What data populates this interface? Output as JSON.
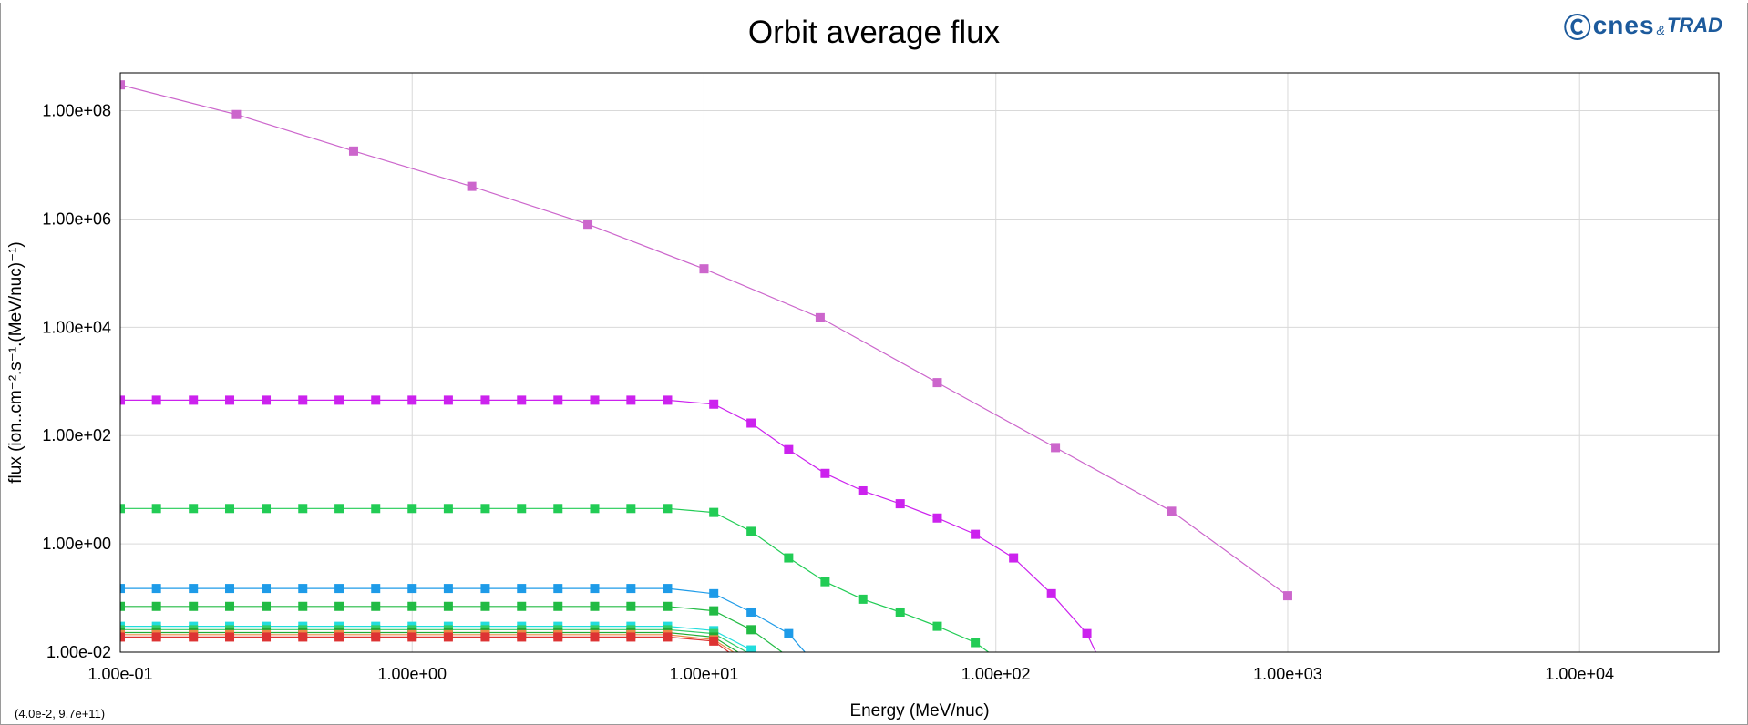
{
  "window": {
    "title": "Orbit average flux"
  },
  "logo": {
    "text": "cnes",
    "amp": "&",
    "suffix": "TRAD"
  },
  "status": {
    "coords": "(4.0e-2, 9.7e+11)"
  },
  "chart_data": {
    "type": "line",
    "title": "Orbit average flux",
    "xlabel": "Energy (MeV/nuc)",
    "ylabel": "flux (ion..cm⁻².s⁻¹.(MeV/nuc)⁻¹)",
    "xscale": "log",
    "yscale": "log",
    "xlim": [
      0.1,
      30000
    ],
    "ylim": [
      0.01,
      500000000
    ],
    "xticks": [
      "1.00e-01",
      "1.00e+00",
      "1.00e+01",
      "1.00e+02",
      "1.00e+03",
      "1.00e+04"
    ],
    "yticks": [
      "1.00e-02",
      "1.00e+00",
      "1.00e+02",
      "1.00e+04",
      "1.00e+06",
      "1.00e+08"
    ],
    "grid": true,
    "series": [
      {
        "color": "#cc66cc",
        "marker": "square",
        "points": [
          [
            0.1,
            300000000
          ],
          [
            0.25,
            85000000
          ],
          [
            0.63,
            18000000
          ],
          [
            1.6,
            4000000
          ],
          [
            4.0,
            800000
          ],
          [
            10,
            120000
          ],
          [
            25,
            15000
          ],
          [
            63,
            950
          ],
          [
            160,
            60
          ],
          [
            400,
            4
          ],
          [
            1000,
            0.11
          ]
        ]
      },
      {
        "color": "#cc22ee",
        "marker": "square",
        "points": [
          [
            0.1,
            450
          ],
          [
            0.133,
            450
          ],
          [
            0.178,
            450
          ],
          [
            0.237,
            450
          ],
          [
            0.316,
            450
          ],
          [
            0.422,
            450
          ],
          [
            0.562,
            450
          ],
          [
            0.75,
            450
          ],
          [
            1.0,
            450
          ],
          [
            1.33,
            450
          ],
          [
            1.78,
            450
          ],
          [
            2.37,
            450
          ],
          [
            3.16,
            450
          ],
          [
            4.22,
            450
          ],
          [
            5.62,
            450
          ],
          [
            7.5,
            450
          ],
          [
            10.8,
            380
          ],
          [
            14.5,
            170
          ],
          [
            19.5,
            55
          ],
          [
            26,
            20
          ],
          [
            35,
            9.5
          ],
          [
            47,
            5.5
          ],
          [
            63,
            3
          ],
          [
            85,
            1.5
          ],
          [
            115,
            0.55
          ],
          [
            155,
            0.12
          ],
          [
            205,
            0.022
          ],
          [
            230,
            0.006
          ]
        ]
      },
      {
        "color": "#22cc55",
        "marker": "square",
        "points": [
          [
            0.1,
            4.5
          ],
          [
            0.133,
            4.5
          ],
          [
            0.178,
            4.5
          ],
          [
            0.237,
            4.5
          ],
          [
            0.316,
            4.5
          ],
          [
            0.422,
            4.5
          ],
          [
            0.562,
            4.5
          ],
          [
            0.75,
            4.5
          ],
          [
            1.0,
            4.5
          ],
          [
            1.33,
            4.5
          ],
          [
            1.78,
            4.5
          ],
          [
            2.37,
            4.5
          ],
          [
            3.16,
            4.5
          ],
          [
            4.22,
            4.5
          ],
          [
            5.62,
            4.5
          ],
          [
            7.5,
            4.5
          ],
          [
            10.8,
            3.8
          ],
          [
            14.5,
            1.7
          ],
          [
            19.5,
            0.55
          ],
          [
            26,
            0.2
          ],
          [
            35,
            0.095
          ],
          [
            47,
            0.055
          ],
          [
            63,
            0.03
          ],
          [
            85,
            0.015
          ],
          [
            100,
            0.008
          ]
        ]
      },
      {
        "color": "#1e9be8",
        "marker": "square",
        "points": [
          [
            0.1,
            0.15
          ],
          [
            0.133,
            0.15
          ],
          [
            0.178,
            0.15
          ],
          [
            0.237,
            0.15
          ],
          [
            0.316,
            0.15
          ],
          [
            0.422,
            0.15
          ],
          [
            0.562,
            0.15
          ],
          [
            0.75,
            0.15
          ],
          [
            1.0,
            0.15
          ],
          [
            1.33,
            0.15
          ],
          [
            1.78,
            0.15
          ],
          [
            2.37,
            0.15
          ],
          [
            3.16,
            0.15
          ],
          [
            4.22,
            0.15
          ],
          [
            5.62,
            0.15
          ],
          [
            7.5,
            0.15
          ],
          [
            10.8,
            0.12
          ],
          [
            14.5,
            0.055
          ],
          [
            19.5,
            0.022
          ],
          [
            23,
            0.008
          ]
        ]
      },
      {
        "color": "#22bb44",
        "marker": "square",
        "points": [
          [
            0.1,
            0.07
          ],
          [
            0.133,
            0.07
          ],
          [
            0.178,
            0.07
          ],
          [
            0.237,
            0.07
          ],
          [
            0.316,
            0.07
          ],
          [
            0.422,
            0.07
          ],
          [
            0.562,
            0.07
          ],
          [
            0.75,
            0.07
          ],
          [
            1.0,
            0.07
          ],
          [
            1.33,
            0.07
          ],
          [
            1.78,
            0.07
          ],
          [
            2.37,
            0.07
          ],
          [
            3.16,
            0.07
          ],
          [
            4.22,
            0.07
          ],
          [
            5.62,
            0.07
          ],
          [
            7.5,
            0.07
          ],
          [
            10.8,
            0.058
          ],
          [
            14.5,
            0.026
          ],
          [
            19,
            0.009
          ]
        ]
      },
      {
        "color": "#22dddd",
        "marker": "square",
        "points": [
          [
            0.1,
            0.03
          ],
          [
            0.133,
            0.03
          ],
          [
            0.178,
            0.03
          ],
          [
            0.237,
            0.03
          ],
          [
            0.316,
            0.03
          ],
          [
            0.422,
            0.03
          ],
          [
            0.562,
            0.03
          ],
          [
            0.75,
            0.03
          ],
          [
            1.0,
            0.03
          ],
          [
            1.33,
            0.03
          ],
          [
            1.78,
            0.03
          ],
          [
            2.37,
            0.03
          ],
          [
            3.16,
            0.03
          ],
          [
            4.22,
            0.03
          ],
          [
            5.62,
            0.03
          ],
          [
            7.5,
            0.03
          ],
          [
            10.8,
            0.025
          ],
          [
            14.5,
            0.011
          ],
          [
            16,
            0.008
          ]
        ]
      },
      {
        "color": "#33cc66",
        "marker": "square",
        "points": [
          [
            0.1,
            0.026
          ],
          [
            0.133,
            0.026
          ],
          [
            0.178,
            0.026
          ],
          [
            0.237,
            0.026
          ],
          [
            0.316,
            0.026
          ],
          [
            0.422,
            0.026
          ],
          [
            0.562,
            0.026
          ],
          [
            0.75,
            0.026
          ],
          [
            1.0,
            0.026
          ],
          [
            1.33,
            0.026
          ],
          [
            1.78,
            0.026
          ],
          [
            2.37,
            0.026
          ],
          [
            3.16,
            0.026
          ],
          [
            4.22,
            0.026
          ],
          [
            5.62,
            0.026
          ],
          [
            7.5,
            0.026
          ],
          [
            10.8,
            0.022
          ],
          [
            14.5,
            0.009
          ]
        ]
      },
      {
        "color": "#22aa33",
        "marker": "square",
        "points": [
          [
            0.1,
            0.023
          ],
          [
            0.133,
            0.023
          ],
          [
            0.178,
            0.023
          ],
          [
            0.237,
            0.023
          ],
          [
            0.316,
            0.023
          ],
          [
            0.422,
            0.023
          ],
          [
            0.562,
            0.023
          ],
          [
            0.75,
            0.023
          ],
          [
            1.0,
            0.023
          ],
          [
            1.33,
            0.023
          ],
          [
            1.78,
            0.023
          ],
          [
            2.37,
            0.023
          ],
          [
            3.16,
            0.023
          ],
          [
            4.22,
            0.023
          ],
          [
            5.62,
            0.023
          ],
          [
            7.5,
            0.023
          ],
          [
            10.8,
            0.019
          ],
          [
            13.5,
            0.009
          ]
        ]
      },
      {
        "color": "#ee8844",
        "marker": "square",
        "points": [
          [
            0.1,
            0.021
          ],
          [
            0.133,
            0.021
          ],
          [
            0.178,
            0.021
          ],
          [
            0.237,
            0.021
          ],
          [
            0.316,
            0.021
          ],
          [
            0.422,
            0.021
          ],
          [
            0.562,
            0.021
          ],
          [
            0.75,
            0.021
          ],
          [
            1.0,
            0.021
          ],
          [
            1.33,
            0.021
          ],
          [
            1.78,
            0.021
          ],
          [
            2.37,
            0.021
          ],
          [
            3.16,
            0.021
          ],
          [
            4.22,
            0.021
          ],
          [
            5.62,
            0.021
          ],
          [
            7.5,
            0.021
          ],
          [
            10.8,
            0.017
          ],
          [
            13,
            0.009
          ]
        ]
      },
      {
        "color": "#dd3333",
        "marker": "square",
        "points": [
          [
            0.1,
            0.019
          ],
          [
            0.133,
            0.019
          ],
          [
            0.178,
            0.019
          ],
          [
            0.237,
            0.019
          ],
          [
            0.316,
            0.019
          ],
          [
            0.422,
            0.019
          ],
          [
            0.562,
            0.019
          ],
          [
            0.75,
            0.019
          ],
          [
            1.0,
            0.019
          ],
          [
            1.33,
            0.019
          ],
          [
            1.78,
            0.019
          ],
          [
            2.37,
            0.019
          ],
          [
            3.16,
            0.019
          ],
          [
            4.22,
            0.019
          ],
          [
            5.62,
            0.019
          ],
          [
            7.5,
            0.019
          ],
          [
            10.8,
            0.016
          ],
          [
            12.5,
            0.009
          ]
        ]
      }
    ]
  }
}
